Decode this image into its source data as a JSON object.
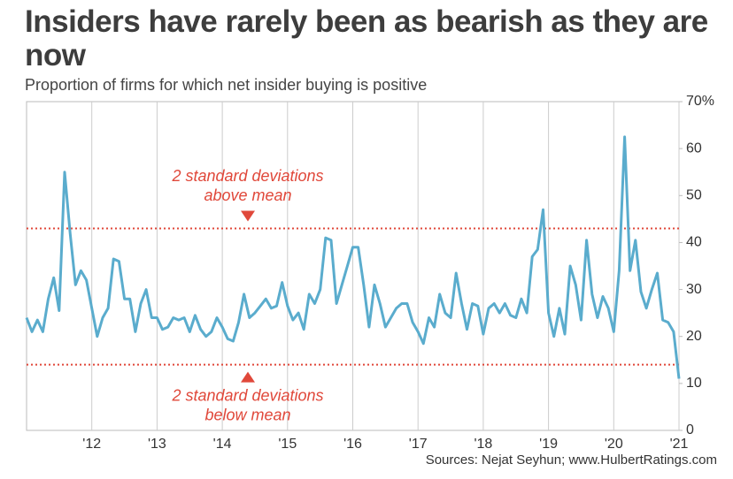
{
  "chart_data": {
    "type": "line",
    "title": "Insiders have rarely been as bearish as they are now",
    "subtitle": "Proportion of firms for which net insider buying is positive",
    "source": "Sources: Nejat Seyhun; www.HulbertRatings.com",
    "x": [
      2011.0,
      2011.083,
      2011.167,
      2011.25,
      2011.333,
      2011.417,
      2011.5,
      2011.583,
      2011.667,
      2011.75,
      2011.833,
      2011.917,
      2012.0,
      2012.083,
      2012.167,
      2012.25,
      2012.333,
      2012.417,
      2012.5,
      2012.583,
      2012.667,
      2012.75,
      2012.833,
      2012.917,
      2013.0,
      2013.083,
      2013.167,
      2013.25,
      2013.333,
      2013.417,
      2013.5,
      2013.583,
      2013.667,
      2013.75,
      2013.833,
      2013.917,
      2014.0,
      2014.083,
      2014.167,
      2014.25,
      2014.333,
      2014.417,
      2014.5,
      2014.583,
      2014.667,
      2014.75,
      2014.833,
      2014.917,
      2015.0,
      2015.083,
      2015.167,
      2015.25,
      2015.333,
      2015.417,
      2015.5,
      2015.583,
      2015.667,
      2015.75,
      2015.833,
      2015.917,
      2016.0,
      2016.083,
      2016.167,
      2016.25,
      2016.333,
      2016.417,
      2016.5,
      2016.583,
      2016.667,
      2016.75,
      2016.833,
      2016.917,
      2017.0,
      2017.083,
      2017.167,
      2017.25,
      2017.333,
      2017.417,
      2017.5,
      2017.583,
      2017.667,
      2017.75,
      2017.833,
      2017.917,
      2018.0,
      2018.083,
      2018.167,
      2018.25,
      2018.333,
      2018.417,
      2018.5,
      2018.583,
      2018.667,
      2018.75,
      2018.833,
      2018.917,
      2019.0,
      2019.083,
      2019.167,
      2019.25,
      2019.333,
      2019.417,
      2019.5,
      2019.583,
      2019.667,
      2019.75,
      2019.833,
      2019.917,
      2020.0,
      2020.083,
      2020.167,
      2020.25,
      2020.333,
      2020.417,
      2020.5,
      2020.583,
      2020.667,
      2020.75,
      2020.833,
      2020.917,
      2021.0
    ],
    "series": [
      {
        "name": "Proportion of firms",
        "color": "#5aaccd",
        "values": [
          24,
          21,
          23.5,
          21,
          28,
          32.5,
          25.5,
          55,
          42,
          31,
          34,
          32,
          26,
          20,
          24,
          26,
          36.5,
          36,
          28,
          28,
          21,
          27,
          30,
          24,
          24,
          21.5,
          22,
          24,
          23.5,
          24,
          21,
          24.5,
          21.5,
          20,
          21,
          24,
          22,
          19.5,
          19,
          23,
          29,
          24,
          25,
          26.5,
          28,
          26,
          26.5,
          31.5,
          26.5,
          23.5,
          25,
          21.5,
          29,
          27,
          30,
          41,
          40.5,
          27,
          31,
          35,
          39,
          39,
          31,
          22,
          31,
          27,
          22,
          24,
          26,
          27,
          27,
          23,
          21,
          18.5,
          24,
          22,
          29,
          25,
          24,
          33.5,
          27,
          21.5,
          27,
          26.5,
          20.5,
          26,
          27,
          25,
          27,
          24.5,
          24,
          28,
          25,
          37,
          38.5,
          47,
          25,
          20,
          26,
          20.5,
          35,
          31,
          23.5,
          40.5,
          29,
          24,
          28.5,
          26,
          21,
          34,
          62.5,
          34,
          40.5,
          29.5,
          26,
          30,
          33.5,
          23.5,
          23,
          21,
          11
        ]
      }
    ],
    "xlim": [
      2011.0,
      2021.0
    ],
    "xticks": [
      {
        "value": 2012,
        "label": "'12"
      },
      {
        "value": 2013,
        "label": "'13"
      },
      {
        "value": 2014,
        "label": "'14"
      },
      {
        "value": 2015,
        "label": "'15"
      },
      {
        "value": 2016,
        "label": "'16"
      },
      {
        "value": 2017,
        "label": "'17"
      },
      {
        "value": 2018,
        "label": "'18"
      },
      {
        "value": 2019,
        "label": "'19"
      },
      {
        "value": 2020,
        "label": "'20"
      },
      {
        "value": 2021,
        "label": "'21"
      }
    ],
    "ylim": [
      0,
      70
    ],
    "yticks": [
      0,
      10,
      20,
      30,
      40,
      50,
      60,
      {
        "value": 70,
        "label": "70%"
      }
    ],
    "grid": true,
    "reference_lines": [
      {
        "value": 43,
        "color": "#e0483a",
        "label_lines": [
          "2 standard deviations",
          "above mean"
        ]
      },
      {
        "value": 14,
        "color": "#e0483a",
        "label_lines": [
          "2 standard deviations",
          "below mean"
        ]
      }
    ]
  }
}
